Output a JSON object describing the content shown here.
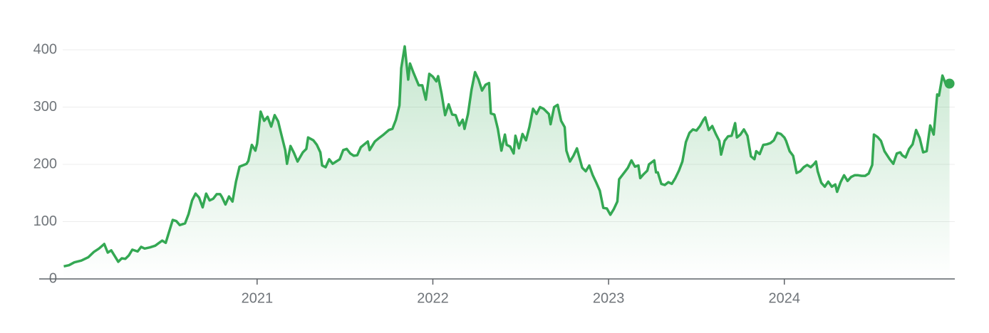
{
  "chart_data": {
    "type": "line",
    "x": [
      2019.9,
      2019.93,
      2019.96,
      2020.0,
      2020.04,
      2020.07,
      2020.1,
      2020.13,
      2020.15,
      2020.17,
      2020.21,
      2020.23,
      2020.25,
      2020.27,
      2020.29,
      2020.32,
      2020.34,
      2020.36,
      2020.39,
      2020.42,
      2020.46,
      2020.48,
      2020.52,
      2020.54,
      2020.56,
      2020.59,
      2020.61,
      2020.63,
      2020.65,
      2020.67,
      2020.69,
      2020.71,
      2020.73,
      2020.75,
      2020.77,
      2020.79,
      2020.8,
      2020.82,
      2020.84,
      2020.86,
      2020.88,
      2020.9,
      2020.94,
      2020.95,
      2020.97,
      2020.99,
      2021.0,
      2021.02,
      2021.04,
      2021.06,
      2021.08,
      2021.1,
      2021.12,
      2021.13,
      2021.16,
      2021.17,
      2021.19,
      2021.21,
      2021.23,
      2021.26,
      2021.28,
      2021.29,
      2021.32,
      2021.34,
      2021.36,
      2021.37,
      2021.39,
      2021.41,
      2021.43,
      2021.45,
      2021.47,
      2021.49,
      2021.51,
      2021.53,
      2021.55,
      2021.57,
      2021.59,
      2021.61,
      2021.63,
      2021.64,
      2021.67,
      2021.69,
      2021.72,
      2021.75,
      2021.77,
      2021.79,
      2021.81,
      2021.82,
      2021.84,
      2021.86,
      2021.87,
      2021.89,
      2021.92,
      2021.94,
      2021.96,
      2021.98,
      2022.0,
      2022.02,
      2022.03,
      2022.05,
      2022.07,
      2022.09,
      2022.11,
      2022.13,
      2022.15,
      2022.17,
      2022.18,
      2022.2,
      2022.22,
      2022.24,
      2022.26,
      2022.28,
      2022.3,
      2022.32,
      2022.33,
      2022.35,
      2022.37,
      2022.39,
      2022.41,
      2022.42,
      2022.44,
      2022.46,
      2022.47,
      2022.49,
      2022.51,
      2022.53,
      2022.55,
      2022.57,
      2022.59,
      2022.61,
      2022.63,
      2022.66,
      2022.67,
      2022.69,
      2022.71,
      2022.73,
      2022.75,
      2022.76,
      2022.78,
      2022.8,
      2022.82,
      2022.84,
      2022.85,
      2022.87,
      2022.89,
      2022.91,
      2022.93,
      2022.95,
      2022.97,
      2022.99,
      2023.01,
      2023.03,
      2023.05,
      2023.06,
      2023.09,
      2023.11,
      2023.13,
      2023.15,
      2023.17,
      2023.18,
      2023.2,
      2023.22,
      2023.23,
      2023.26,
      2023.27,
      2023.28,
      2023.3,
      2023.32,
      2023.34,
      2023.36,
      2023.38,
      2023.4,
      2023.42,
      2023.44,
      2023.46,
      2023.48,
      2023.5,
      2023.52,
      2023.54,
      2023.55,
      2023.57,
      2023.59,
      2023.61,
      2023.63,
      2023.64,
      2023.66,
      2023.68,
      2023.7,
      2023.72,
      2023.73,
      2023.75,
      2023.77,
      2023.79,
      2023.81,
      2023.83,
      2023.84,
      2023.86,
      2023.88,
      2023.9,
      2023.92,
      2023.94,
      2023.96,
      2023.98,
      2024.0,
      2024.01,
      2024.03,
      2024.05,
      2024.07,
      2024.09,
      2024.11,
      2024.13,
      2024.15,
      2024.17,
      2024.18,
      2024.19,
      2024.21,
      2024.23,
      2024.25,
      2024.27,
      2024.29,
      2024.3,
      2024.32,
      2024.34,
      2024.36,
      2024.38,
      2024.4,
      2024.42,
      2024.44,
      2024.46,
      2024.48,
      2024.5,
      2024.51,
      2024.53,
      2024.55,
      2024.57,
      2024.6,
      2024.62,
      2024.64,
      2024.66,
      2024.67,
      2024.69,
      2024.71,
      2024.73,
      2024.75,
      2024.77,
      2024.79,
      2024.81,
      2024.83,
      2024.85,
      2024.87,
      2024.88,
      2024.9,
      2024.92,
      2024.94
    ],
    "values": [
      22,
      24,
      29,
      32,
      38,
      47,
      53,
      61,
      46,
      50,
      30,
      36,
      35,
      41,
      51,
      48,
      56,
      53,
      55,
      58,
      67,
      63,
      103,
      101,
      94,
      97,
      113,
      137,
      149,
      142,
      125,
      149,
      137,
      140,
      148,
      148,
      143,
      130,
      144,
      135,
      170,
      196,
      201,
      206,
      234,
      224,
      236,
      292,
      276,
      283,
      266,
      286,
      275,
      262,
      225,
      201,
      232,
      220,
      205,
      221,
      227,
      247,
      242,
      234,
      221,
      198,
      195,
      209,
      201,
      205,
      209,
      225,
      227,
      219,
      215,
      216,
      230,
      235,
      240,
      225,
      240,
      245,
      252,
      260,
      262,
      278,
      303,
      368,
      406,
      348,
      376,
      360,
      338,
      338,
      313,
      358,
      353,
      345,
      354,
      323,
      286,
      305,
      287,
      286,
      268,
      278,
      262,
      288,
      330,
      361,
      348,
      329,
      339,
      342,
      289,
      287,
      262,
      224,
      252,
      234,
      231,
      219,
      250,
      228,
      253,
      242,
      266,
      297,
      288,
      300,
      297,
      288,
      270,
      300,
      304,
      276,
      265,
      224,
      205,
      215,
      228,
      205,
      194,
      188,
      198,
      181,
      168,
      154,
      124,
      123,
      112,
      122,
      135,
      174,
      186,
      194,
      207,
      196,
      198,
      176,
      183,
      189,
      200,
      207,
      186,
      186,
      166,
      164,
      169,
      166,
      176,
      189,
      205,
      239,
      255,
      261,
      259,
      267,
      278,
      282,
      260,
      267,
      253,
      241,
      217,
      241,
      249,
      250,
      272,
      247,
      252,
      261,
      250,
      214,
      209,
      223,
      218,
      234,
      235,
      237,
      242,
      255,
      253,
      247,
      241,
      223,
      215,
      185,
      188,
      195,
      199,
      195,
      201,
      205,
      188,
      168,
      161,
      170,
      161,
      165,
      152,
      169,
      181,
      171,
      178,
      181,
      181,
      180,
      180,
      184,
      199,
      252,
      248,
      241,
      223,
      209,
      201,
      219,
      221,
      216,
      212,
      227,
      235,
      260,
      246,
      221,
      223,
      268,
      252,
      322,
      320,
      355,
      339,
      341
    ],
    "color": "#34a853",
    "xlim": [
      2019.76,
      2024.97
    ],
    "xticks": [
      2021,
      2022,
      2023,
      2024
    ],
    "ylim": [
      0,
      400
    ],
    "yticks": [
      0,
      100,
      200,
      300,
      400
    ],
    "grid": true
  }
}
